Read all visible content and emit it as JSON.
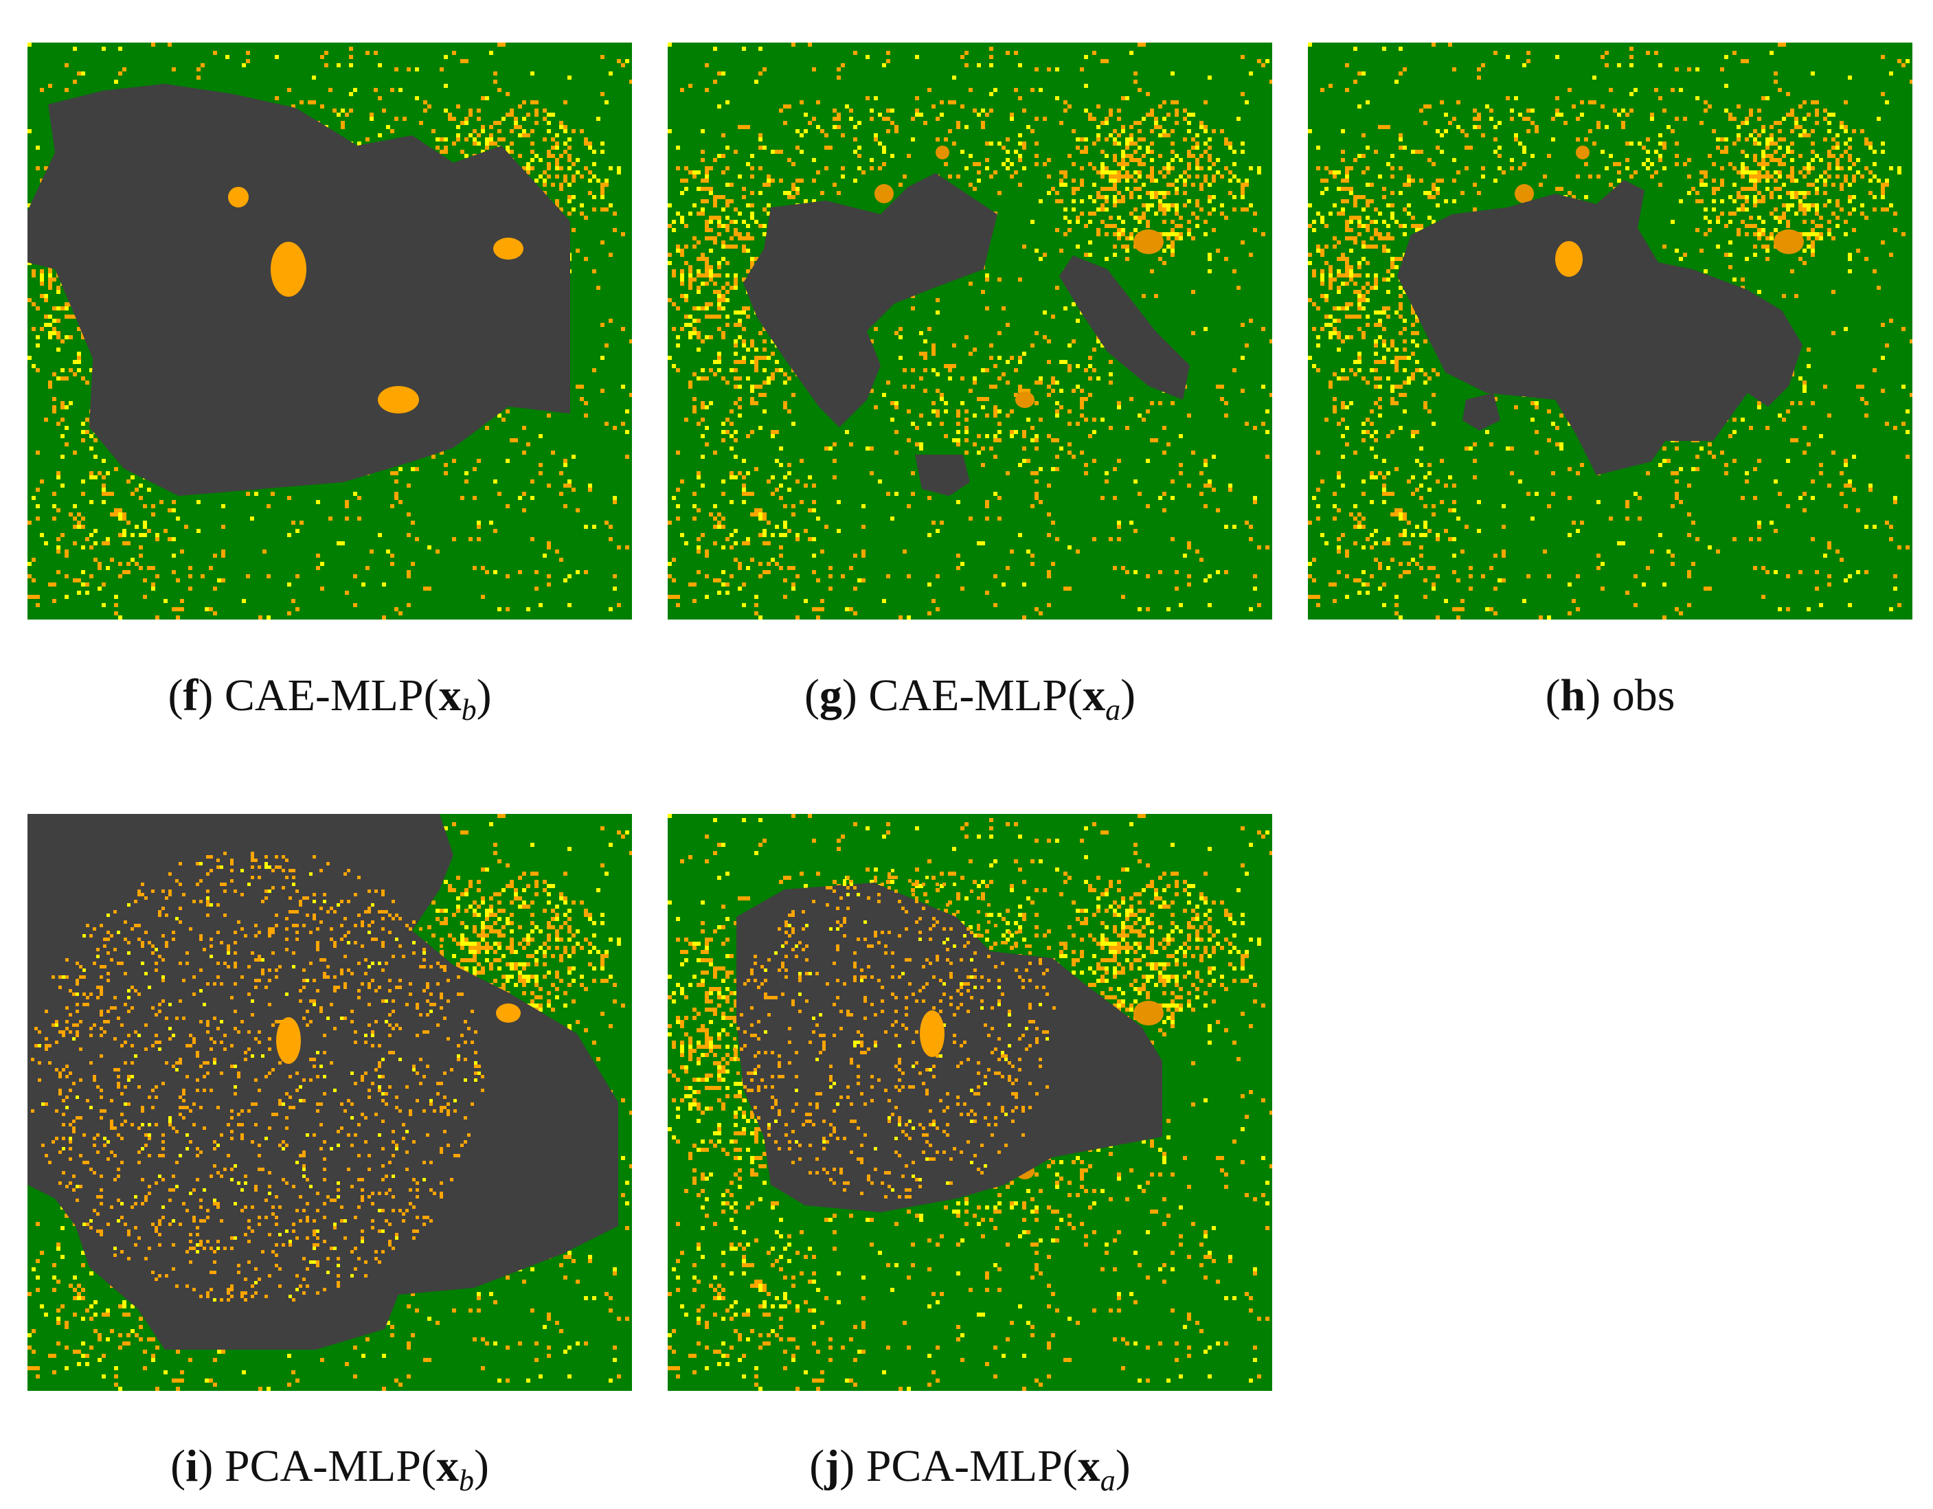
{
  "colors": {
    "green": "#007f00",
    "orange": "#ffa500",
    "yellow": "#ffff00",
    "dark_orange": "#e69200",
    "gray": "#404040"
  },
  "panels": [
    {
      "id": "f",
      "letter": "f",
      "model": "CAE-MLP(",
      "vec": "x",
      "sub": "b",
      "close": ")"
    },
    {
      "id": "g",
      "letter": "g",
      "model": "CAE-MLP(",
      "vec": "x",
      "sub": "a",
      "close": ")"
    },
    {
      "id": "h",
      "letter": "h",
      "model": "obs",
      "vec": "",
      "sub": "",
      "close": ""
    },
    {
      "id": "i",
      "letter": "i",
      "model": "PCA-MLP(",
      "vec": "x",
      "sub": "b",
      "close": ")"
    },
    {
      "id": "j",
      "letter": "j",
      "model": "PCA-MLP(",
      "vec": "x",
      "sub": "a",
      "close": ")"
    }
  ]
}
